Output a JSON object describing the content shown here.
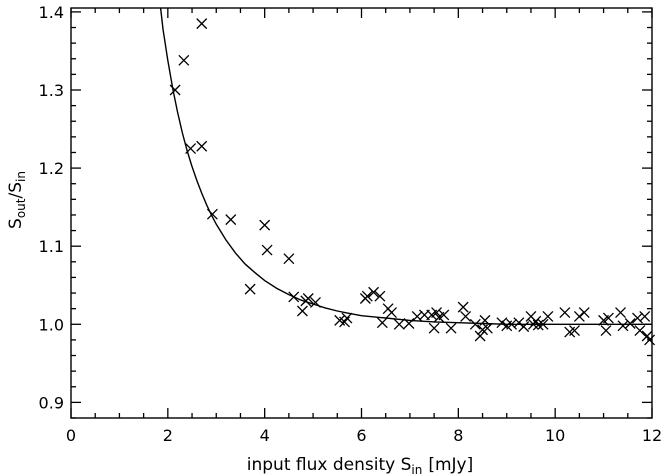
{
  "chart_data": {
    "type": "scatter",
    "title": "",
    "xlabel_main": "input flux density S",
    "xlabel_sub": "in",
    "xlabel_unit": "[mJy]",
    "ylabel_num": "S",
    "ylabel_num_sub": "out",
    "ylabel_slash": "/",
    "ylabel_den": "S",
    "ylabel_den_sub": "in",
    "xlim": [
      0,
      12
    ],
    "ylim": [
      0.88,
      1.405
    ],
    "x_ticks": [
      0,
      2,
      4,
      6,
      8,
      10,
      12
    ],
    "x_tick_labels": [
      "0",
      "2",
      "4",
      "6",
      "8",
      "10",
      "12"
    ],
    "y_ticks": [
      0.9,
      1.0,
      1.1,
      1.2,
      1.3,
      1.4
    ],
    "y_tick_labels": [
      "0.9",
      "1.0",
      "1.1",
      "1.2",
      "1.3",
      "1.4"
    ],
    "grid": false,
    "legend": "none",
    "marker": "x",
    "points": [
      [
        2.15,
        1.3
      ],
      [
        2.33,
        1.338
      ],
      [
        2.47,
        1.225
      ],
      [
        2.7,
        1.385
      ],
      [
        2.7,
        1.228
      ],
      [
        2.92,
        1.141
      ],
      [
        3.3,
        1.134
      ],
      [
        3.7,
        1.045
      ],
      [
        4.0,
        1.127
      ],
      [
        4.05,
        1.095
      ],
      [
        4.5,
        1.084
      ],
      [
        4.6,
        1.035
      ],
      [
        4.78,
        1.017
      ],
      [
        4.85,
        1.03
      ],
      [
        4.9,
        1.033
      ],
      [
        5.05,
        1.028
      ],
      [
        5.55,
        1.005
      ],
      [
        5.65,
        1.003
      ],
      [
        5.7,
        1.008
      ],
      [
        6.08,
        1.033
      ],
      [
        6.12,
        1.036
      ],
      [
        6.25,
        1.041
      ],
      [
        6.38,
        1.036
      ],
      [
        6.43,
        1.002
      ],
      [
        6.55,
        1.02
      ],
      [
        6.62,
        1.015
      ],
      [
        6.78,
        1.0
      ],
      [
        6.98,
        1.001
      ],
      [
        7.15,
        1.01
      ],
      [
        7.3,
        1.012
      ],
      [
        7.45,
        1.012
      ],
      [
        7.5,
        0.995
      ],
      [
        7.55,
        1.015
      ],
      [
        7.6,
        1.009
      ],
      [
        7.7,
        1.012
      ],
      [
        7.85,
        0.995
      ],
      [
        8.1,
        1.022
      ],
      [
        8.15,
        1.01
      ],
      [
        8.35,
        1.0
      ],
      [
        8.45,
        0.985
      ],
      [
        8.5,
        0.993
      ],
      [
        8.55,
        1.005
      ],
      [
        8.6,
        0.995
      ],
      [
        8.9,
        1.002
      ],
      [
        9.0,
        0.998
      ],
      [
        9.1,
        1.0
      ],
      [
        9.25,
        1.002
      ],
      [
        9.35,
        0.997
      ],
      [
        9.5,
        1.01
      ],
      [
        9.55,
        1.0
      ],
      [
        9.6,
        1.004
      ],
      [
        9.65,
        0.999
      ],
      [
        9.75,
        1.0
      ],
      [
        9.85,
        1.01
      ],
      [
        10.2,
        1.015
      ],
      [
        10.3,
        0.99
      ],
      [
        10.4,
        0.992
      ],
      [
        10.5,
        1.01
      ],
      [
        10.6,
        1.015
      ],
      [
        11.0,
        1.005
      ],
      [
        11.05,
        0.992
      ],
      [
        11.1,
        1.008
      ],
      [
        11.35,
        1.015
      ],
      [
        11.4,
        0.998
      ],
      [
        11.55,
        1.001
      ],
      [
        11.7,
        1.008
      ],
      [
        11.75,
        0.992
      ],
      [
        11.85,
        1.01
      ],
      [
        11.9,
        0.985
      ],
      [
        11.95,
        0.98
      ]
    ],
    "fit_curve": {
      "name": "",
      "x": [
        1.85,
        1.9,
        2.0,
        2.1,
        2.2,
        2.3,
        2.4,
        2.5,
        2.6,
        2.7,
        2.8,
        2.9,
        3.0,
        3.2,
        3.4,
        3.6,
        3.8,
        4.0,
        4.25,
        4.5,
        4.75,
        5.0,
        5.25,
        5.5,
        5.75,
        6.0,
        6.5,
        7.0,
        7.5,
        8.0,
        8.5,
        9.0,
        9.5,
        10.0,
        10.5,
        11.0,
        11.5,
        12.0
      ],
      "y": [
        1.405,
        1.378,
        1.338,
        1.302,
        1.272,
        1.245,
        1.222,
        1.202,
        1.184,
        1.168,
        1.153,
        1.14,
        1.128,
        1.108,
        1.091,
        1.077,
        1.066,
        1.056,
        1.046,
        1.038,
        1.031,
        1.026,
        1.021,
        1.017,
        1.014,
        1.011,
        1.008,
        1.005,
        1.003,
        1.002,
        1.001,
        1.0,
        1.0,
        1.0,
        1.0,
        1.0,
        1.0,
        1.0
      ]
    }
  }
}
